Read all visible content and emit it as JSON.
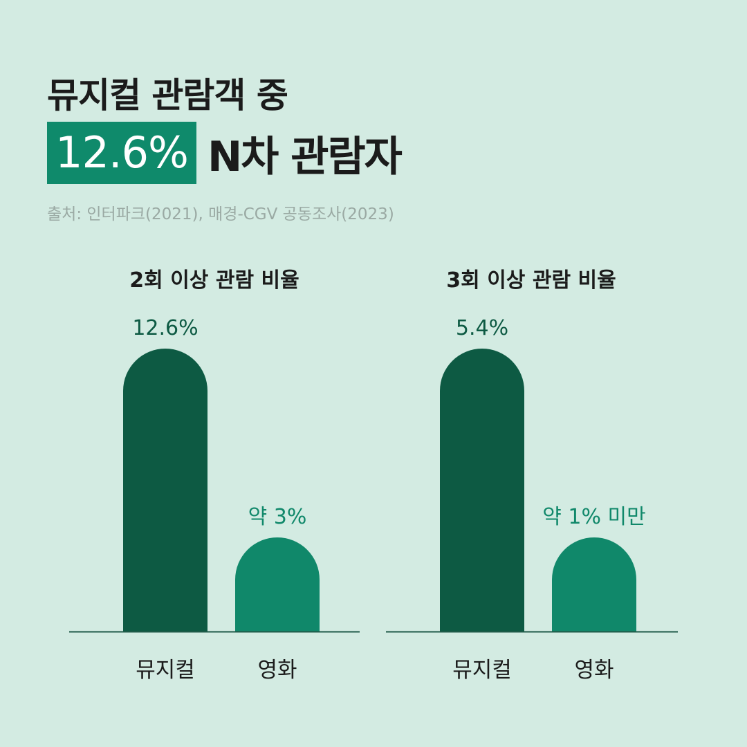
{
  "header": {
    "title_line1": "뮤지컬 관람객 중",
    "highlight": "12.6%",
    "title_line2_rest": "N차 관람자",
    "source": "출처: 인터파크(2021), 매경-CGV 공동조사(2023)"
  },
  "colors": {
    "background": "#d3ebe2",
    "highlight": "#0f8a6b",
    "musical_bar": "#0d5a43",
    "movie_bar": "#10886a",
    "axis": "#1f5a48"
  },
  "chart_data": [
    {
      "type": "bar",
      "title": "2회 이상 관람 비율",
      "categories": [
        "뮤지컬",
        "영화"
      ],
      "values": [
        12.6,
        3
      ],
      "value_labels": [
        "12.6%",
        "약 3%"
      ],
      "bar_colors": [
        "#0d5a43",
        "#10886a"
      ],
      "label_colors": [
        "#0d5a43",
        "#10886a"
      ]
    },
    {
      "type": "bar",
      "title": "3회 이상 관람 비율",
      "categories": [
        "뮤지컬",
        "영화"
      ],
      "values": [
        5.4,
        1
      ],
      "value_labels": [
        "5.4%",
        "약 1% 미만"
      ],
      "bar_colors": [
        "#0d5a43",
        "#10886a"
      ],
      "label_colors": [
        "#0d5a43",
        "#10886a"
      ]
    }
  ]
}
